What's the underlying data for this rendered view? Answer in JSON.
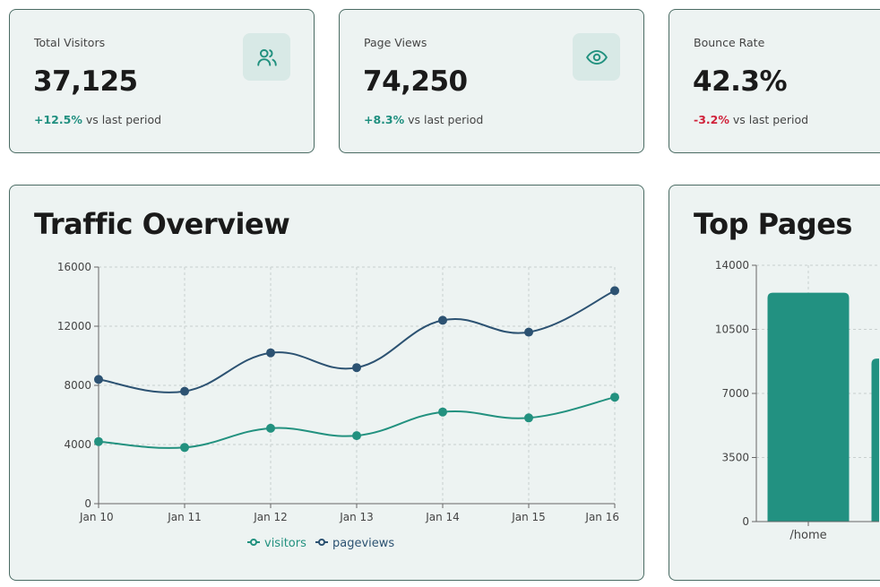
{
  "stats": [
    {
      "label": "Total Visitors",
      "value": "37,125",
      "change": "+12.5%",
      "change_suffix": "vs last period",
      "trend": "up",
      "icon": "users-icon"
    },
    {
      "label": "Page Views",
      "value": "74,250",
      "change": "+8.3%",
      "change_suffix": "vs last period",
      "trend": "up",
      "icon": "eye-icon"
    },
    {
      "label": "Bounce Rate",
      "value": "42.3%",
      "change": "-3.2%",
      "change_suffix": "vs last period",
      "trend": "down",
      "icon": ""
    }
  ],
  "traffic": {
    "title": "Traffic Overview"
  },
  "top_pages": {
    "title": "Top Pages"
  },
  "colors": {
    "visitors": "#22917f",
    "pageviews": "#2c5272",
    "bar": "#229181",
    "up": "#1f8f7f",
    "down": "#d0213a"
  },
  "chart_data": [
    {
      "type": "line",
      "categories": [
        "Jan 10",
        "Jan 11",
        "Jan 12",
        "Jan 13",
        "Jan 14",
        "Jan 15",
        "Jan 16"
      ],
      "series": [
        {
          "name": "visitors",
          "values": [
            4200,
            3800,
            5100,
            4600,
            6200,
            5800,
            7200
          ]
        },
        {
          "name": "pageviews",
          "values": [
            8400,
            7600,
            10200,
            9200,
            12400,
            11600,
            14400
          ]
        }
      ],
      "ylim": [
        0,
        16000
      ],
      "yticks": [
        0,
        4000,
        8000,
        12000,
        16000
      ],
      "grid": true,
      "legend": "bottom",
      "curve": "smooth"
    },
    {
      "type": "bar",
      "categories": [
        "/home",
        ""
      ],
      "values": [
        12500,
        8900
      ],
      "ylim": [
        0,
        14000
      ],
      "yticks": [
        0,
        3500,
        7000,
        10500,
        14000
      ],
      "grid": true
    }
  ]
}
